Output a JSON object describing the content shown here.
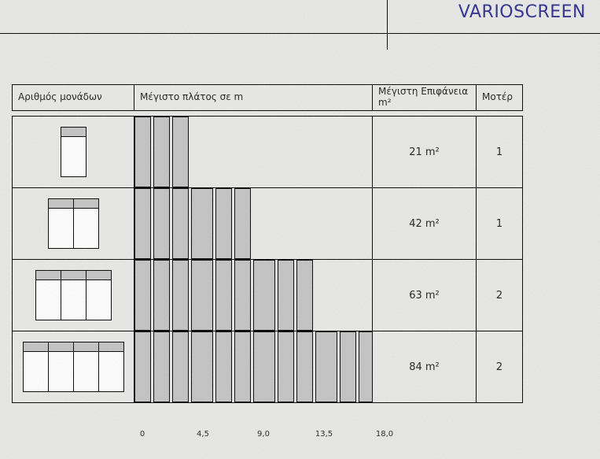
{
  "page": {
    "title": "VARIOSCREEN",
    "colors": {
      "title": "#2b2b8e",
      "bar_fill": "#c3c3c3",
      "line": "#000000",
      "paper": "#e8e8e6"
    }
  },
  "table": {
    "headers": {
      "units": "Αριθμός μονάδων",
      "max_width": "Μέγιστο πλάτος σε m",
      "max_surface": "Μέγιστη Επιφάνεια m²",
      "motor": "Μοτέρ"
    },
    "rows": [
      {
        "units": 1,
        "bar_segments": 3,
        "surface": "21 m²",
        "motors": "1"
      },
      {
        "units": 2,
        "bar_segments": 6,
        "surface": "42 m²",
        "motors": "1"
      },
      {
        "units": 3,
        "bar_segments": 9,
        "surface": "63 m²",
        "motors": "2"
      },
      {
        "units": 4,
        "bar_segments": 12,
        "surface": "84 m²",
        "motors": "2"
      }
    ]
  },
  "axis": {
    "labels": [
      "0",
      "4,5",
      "9,0",
      "13,5",
      "18,0"
    ],
    "unit": "m"
  },
  "chart_data": {
    "type": "bar",
    "title": "Μέγιστο πλάτος σε m",
    "xlabel": "m",
    "x_ticks": [
      0,
      4.5,
      9.0,
      13.5,
      18.0
    ],
    "xlim": [
      0,
      18
    ],
    "series": [
      {
        "name": "1 μονάδα",
        "segments": 3,
        "max_width_m": 4.5,
        "surface_m2": 21,
        "motors": 1
      },
      {
        "name": "2 μονάδες",
        "segments": 6,
        "max_width_m": 9.0,
        "surface_m2": 42,
        "motors": 1
      },
      {
        "name": "3 μονάδες",
        "segments": 9,
        "max_width_m": 13.5,
        "surface_m2": 63,
        "motors": 2
      },
      {
        "name": "4 μονάδες",
        "segments": 12,
        "max_width_m": 18.0,
        "surface_m2": 84,
        "motors": 2
      }
    ]
  }
}
